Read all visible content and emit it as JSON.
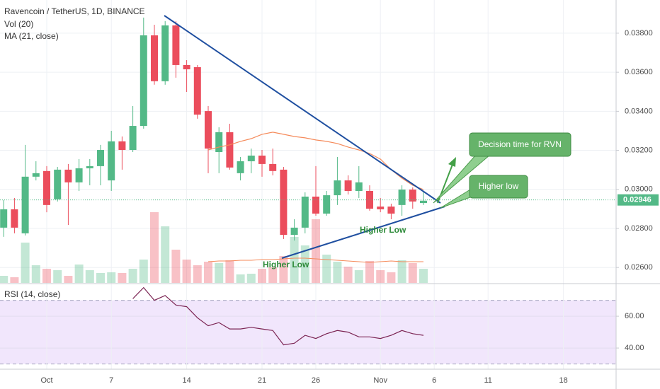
{
  "chart_data": {
    "type": "candlestick",
    "title": "Ravencoin / TetherUS, 1D, BINANCE",
    "categories": [
      null,
      null,
      null,
      null,
      "Oct",
      null,
      null,
      null,
      null,
      null,
      "7",
      null,
      null,
      null,
      null,
      null,
      null,
      "14",
      null,
      null,
      null,
      null,
      null,
      null,
      "21",
      null,
      null,
      null,
      null,
      "26",
      null,
      null,
      null,
      null,
      null,
      "Nov",
      null,
      null,
      null,
      null,
      "6",
      null,
      null,
      null,
      null,
      "11",
      null,
      null,
      null,
      null,
      null,
      null,
      "18",
      null,
      null,
      null,
      null
    ],
    "open": [
      0.02804,
      0.02898,
      0.02775,
      0.03065,
      0.03094,
      0.02949,
      0.03101,
      0.03036,
      0.03108,
      0.03119,
      0.03046,
      0.03246,
      0.03202,
      0.03325,
      0.03789,
      0.03554,
      0.0384,
      0.03637,
      0.03626,
      0.03401,
      0.03191,
      0.03293,
      0.03083,
      0.03144,
      0.03173,
      0.0313,
      0.03101,
      0.02767,
      0.02804,
      0.02963,
      0.02876,
      0.0297,
      0.03046,
      0.02992,
      0.02992,
      0.02912,
      0.02912,
      0.0292,
      0.02999,
      0.0293,
      null,
      null,
      null,
      null,
      null,
      null,
      null,
      null,
      null,
      null,
      null,
      null,
      null,
      null,
      null,
      null,
      null
    ],
    "high": [
      0.02945,
      0.02956,
      0.03228,
      0.03144,
      0.03119,
      0.03115,
      0.0313,
      0.03155,
      0.03155,
      0.03228,
      0.033,
      0.03271,
      0.03427,
      0.0388,
      0.03843,
      0.03862,
      0.03862,
      0.03662,
      0.03637,
      0.03427,
      0.03318,
      0.03336,
      0.03166,
      0.03209,
      0.03202,
      0.03209,
      0.03115,
      0.02847,
      0.02985,
      0.03119,
      0.02992,
      0.03166,
      0.03072,
      0.03119,
      0.03021,
      0.02956,
      0.02927,
      0.03021,
      0.0301,
      0.02992,
      null,
      null,
      null,
      null,
      null,
      null,
      null,
      null,
      null,
      null,
      null,
      null,
      null,
      null,
      null,
      null,
      null
    ],
    "low": [
      0.02757,
      0.02775,
      0.02764,
      0.03046,
      0.02883,
      0.02938,
      0.02818,
      0.02992,
      0.03021,
      0.03021,
      0.02992,
      0.03101,
      0.03191,
      0.03311,
      0.03536,
      0.03536,
      0.03572,
      0.03499,
      0.03362,
      0.03083,
      0.03083,
      0.03101,
      0.03046,
      0.03083,
      0.03065,
      0.03072,
      0.02746,
      0.02738,
      0.02775,
      0.02865,
      0.02865,
      0.0292,
      0.02974,
      0.02956,
      0.02891,
      0.02883,
      0.02847,
      0.02865,
      0.02901,
      0.0292,
      null,
      null,
      null,
      null,
      null,
      null,
      null,
      null,
      null,
      null,
      null,
      null,
      null,
      null,
      null,
      null,
      null
    ],
    "close": [
      0.02898,
      0.02804,
      0.03065,
      0.03083,
      0.0292,
      0.03101,
      0.03036,
      0.03108,
      0.03119,
      0.03202,
      0.03246,
      0.03202,
      0.03325,
      0.03789,
      0.03554,
      0.0384,
      0.03637,
      0.03615,
      0.03383,
      0.03209,
      0.03293,
      0.03112,
      0.03144,
      0.03173,
      0.0313,
      0.03094,
      0.02767,
      0.02804,
      0.02963,
      0.02876,
      0.0297,
      0.03046,
      0.02992,
      0.03036,
      0.02901,
      0.02898,
      0.02876,
      0.02999,
      0.02938,
      0.02942,
      null,
      null,
      null,
      null,
      null,
      null,
      null,
      null,
      null,
      null,
      null,
      null,
      null,
      null,
      null,
      null,
      null
    ],
    "up_color": "#53b987",
    "down_color": "#eb4d5c",
    "ylim": [
      0.02521,
      0.0397
    ],
    "yticks": [
      {
        "value": 0.026,
        "label": "0.02600"
      },
      {
        "value": 0.028,
        "label": "0.02800"
      },
      {
        "value": 0.03,
        "label": "0.03000"
      },
      {
        "value": 0.032,
        "label": "0.03200"
      },
      {
        "value": 0.034,
        "label": "0.03400"
      },
      {
        "value": 0.036,
        "label": "0.03600"
      },
      {
        "value": 0.038,
        "label": "0.03800"
      }
    ],
    "grid": true,
    "last_price": 0.02946,
    "overlays": [
      {
        "name": "MA (21, close)",
        "color": "#f58a5a",
        "values": [
          null,
          null,
          null,
          null,
          null,
          null,
          null,
          null,
          null,
          null,
          null,
          null,
          null,
          null,
          null,
          null,
          null,
          null,
          null,
          0.03202,
          0.03217,
          0.03228,
          0.03246,
          0.0326,
          0.03282,
          0.03293,
          0.03282,
          0.03271,
          0.03264,
          0.03253,
          0.03246,
          0.03235,
          0.03217,
          0.03202,
          0.03184,
          0.03155,
          0.03101,
          0.03057,
          0.03021,
          0.02999,
          null,
          null,
          null,
          null,
          null,
          null,
          null,
          null,
          null,
          null,
          null,
          null,
          null,
          null,
          null,
          null,
          null
        ]
      }
    ],
    "volume": {
      "name": "Vol (20)",
      "ylim": [
        0,
        100
      ],
      "ma_color": "#f58a5a",
      "values": [
        10,
        8,
        57,
        25,
        20,
        18,
        10,
        26,
        18,
        14,
        15,
        14,
        20,
        33,
        100,
        80,
        47,
        33,
        25,
        30,
        28,
        32,
        12,
        13,
        20,
        22,
        38,
        65,
        53,
        90,
        40,
        30,
        23,
        18,
        31,
        18,
        15,
        32,
        28,
        20,
        null,
        null,
        null,
        null,
        null,
        null,
        null,
        null,
        null,
        null,
        null,
        null,
        null,
        null,
        null,
        null,
        null
      ],
      "ma": [
        null,
        null,
        null,
        null,
        null,
        null,
        null,
        null,
        null,
        null,
        null,
        null,
        null,
        null,
        null,
        null,
        null,
        null,
        null,
        30,
        31,
        31,
        32,
        32,
        33,
        33,
        34,
        35,
        35,
        34,
        33,
        32,
        31,
        30,
        29,
        30,
        31,
        30,
        30,
        30,
        null,
        null,
        null,
        null,
        null,
        null,
        null,
        null,
        null,
        null,
        null,
        null,
        null,
        null,
        null,
        null,
        null
      ]
    },
    "rsi": {
      "name": "RSI (14, close)",
      "color": "#7b2453",
      "band_color": "#f1e6fc",
      "band": [
        30,
        70
      ],
      "ylim": [
        26.7,
        79.6
      ],
      "yticks": [
        {
          "value": 60,
          "label": "60.00"
        },
        {
          "value": 40,
          "label": "40.00"
        }
      ],
      "values": [
        null,
        null,
        null,
        null,
        null,
        null,
        null,
        null,
        null,
        null,
        null,
        null,
        71,
        78,
        70,
        73,
        67,
        66,
        59,
        54,
        56,
        52,
        52,
        53,
        52,
        51,
        42,
        43,
        48,
        46,
        49,
        51,
        50,
        47,
        47,
        46,
        48,
        51,
        49,
        48,
        null,
        null,
        null,
        null,
        null,
        null,
        null,
        null,
        null,
        null,
        null,
        null,
        null,
        null,
        null,
        null,
        null
      ]
    },
    "annotations": [
      "Higher Low",
      "Higher Low",
      "Higher low",
      "Decision time for RVN"
    ]
  }
}
